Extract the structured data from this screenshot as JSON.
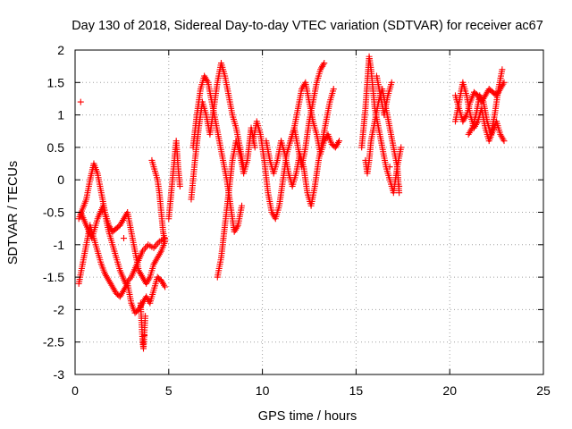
{
  "chart_data": {
    "type": "scatter",
    "title": "Day 130 of 2018, Sidereal Day-to-day VTEC variation (SDTVAR) for receiver ac67",
    "xlabel": "GPS time / hours",
    "ylabel": "SDTVAR / TECUs",
    "xlim": [
      0,
      25
    ],
    "ylim": [
      -3,
      2
    ],
    "xticks": [
      "0",
      "5",
      "10",
      "15",
      "20",
      "25"
    ],
    "yticks": [
      "2",
      "1.5",
      "1",
      "0.5",
      "0",
      "-0.5",
      "-1",
      "-1.5",
      "-2",
      "-2.5",
      "-3"
    ],
    "grid": true,
    "marker": "plus",
    "series": [
      {
        "name": "SDTVAR",
        "color": "#ff0000",
        "tracks": [
          [
            [
              0.2,
              -0.6
            ],
            [
              0.4,
              -0.45
            ],
            [
              0.6,
              -0.3
            ],
            [
              0.8,
              0.0
            ],
            [
              1.0,
              0.25
            ],
            [
              1.2,
              0.1
            ],
            [
              1.4,
              -0.2
            ],
            [
              1.6,
              -0.5
            ],
            [
              1.8,
              -0.7
            ],
            [
              2.0,
              -0.8
            ],
            [
              2.2,
              -0.75
            ],
            [
              2.4,
              -0.7
            ],
            [
              2.6,
              -0.6
            ],
            [
              2.8,
              -0.5
            ],
            [
              3.0,
              -0.8
            ],
            [
              3.2,
              -1.1
            ],
            [
              3.4,
              -1.4
            ],
            [
              3.6,
              -1.5
            ],
            [
              3.8,
              -1.6
            ],
            [
              4.0,
              -1.5
            ],
            [
              4.2,
              -1.3
            ],
            [
              4.4,
              -1.2
            ],
            [
              4.6,
              -1.1
            ],
            [
              4.8,
              -0.95
            ]
          ],
          [
            [
              0.2,
              -1.6
            ],
            [
              0.4,
              -1.3
            ],
            [
              0.6,
              -1.0
            ],
            [
              0.8,
              -0.7
            ],
            [
              1.0,
              -0.9
            ],
            [
              1.2,
              -1.1
            ],
            [
              1.4,
              -1.3
            ],
            [
              1.6,
              -1.45
            ],
            [
              1.8,
              -1.55
            ],
            [
              2.0,
              -1.65
            ],
            [
              2.2,
              -1.75
            ],
            [
              2.4,
              -1.8
            ],
            [
              2.6,
              -1.7
            ],
            [
              2.8,
              -1.6
            ],
            [
              3.0,
              -1.9
            ],
            [
              3.2,
              -2.05
            ],
            [
              3.4,
              -2.0
            ],
            [
              3.6,
              -1.9
            ],
            [
              3.8,
              -1.8
            ],
            [
              4.0,
              -1.9
            ],
            [
              4.2,
              -1.7
            ],
            [
              4.4,
              -1.5
            ],
            [
              4.6,
              -1.55
            ],
            [
              4.8,
              -1.65
            ]
          ],
          [
            [
              0.3,
              -0.5
            ],
            [
              0.6,
              -0.7
            ],
            [
              0.9,
              -0.9
            ],
            [
              1.2,
              -0.6
            ],
            [
              1.5,
              -0.4
            ],
            [
              1.8,
              -0.8
            ],
            [
              2.1,
              -1.1
            ],
            [
              2.4,
              -1.4
            ],
            [
              2.7,
              -1.6
            ],
            [
              3.0,
              -1.5
            ],
            [
              3.3,
              -1.3
            ],
            [
              3.6,
              -1.1
            ],
            [
              3.9,
              -1.0
            ],
            [
              4.2,
              -1.05
            ],
            [
              4.5,
              -0.95
            ],
            [
              4.8,
              -0.9
            ]
          ],
          [
            [
              3.5,
              -1.9
            ],
            [
              3.55,
              -2.2
            ],
            [
              3.6,
              -2.45
            ],
            [
              3.65,
              -2.6
            ],
            [
              3.7,
              -2.35
            ],
            [
              3.75,
              -2.1
            ]
          ],
          [
            [
              4.1,
              0.3
            ],
            [
              4.2,
              0.2
            ],
            [
              4.3,
              0.1
            ],
            [
              4.4,
              0.0
            ],
            [
              4.5,
              -0.2
            ],
            [
              4.6,
              -0.5
            ],
            [
              4.7,
              -0.8
            ],
            [
              4.8,
              -0.95
            ]
          ],
          [
            [
              5.0,
              -0.6
            ],
            [
              5.1,
              -0.3
            ],
            [
              5.2,
              0.0
            ],
            [
              5.3,
              0.3
            ],
            [
              5.4,
              0.6
            ],
            [
              5.5,
              0.2
            ],
            [
              5.6,
              -0.1
            ]
          ],
          [
            [
              6.2,
              -0.3
            ],
            [
              6.4,
              0.3
            ],
            [
              6.6,
              0.8
            ],
            [
              6.8,
              1.2
            ],
            [
              7.0,
              1.0
            ],
            [
              7.2,
              0.7
            ],
            [
              7.4,
              1.1
            ],
            [
              7.6,
              1.5
            ],
            [
              7.8,
              1.8
            ],
            [
              8.0,
              1.6
            ],
            [
              8.2,
              1.3
            ],
            [
              8.4,
              1.0
            ],
            [
              8.6,
              0.8
            ],
            [
              8.8,
              0.5
            ],
            [
              9.0,
              0.2
            ]
          ],
          [
            [
              6.3,
              0.5
            ],
            [
              6.5,
              1.0
            ],
            [
              6.7,
              1.4
            ],
            [
              6.9,
              1.6
            ],
            [
              7.1,
              1.5
            ],
            [
              7.3,
              1.2
            ],
            [
              7.5,
              0.9
            ],
            [
              7.7,
              0.6
            ],
            [
              7.9,
              0.3
            ],
            [
              8.1,
              0.0
            ],
            [
              8.3,
              -0.4
            ],
            [
              8.5,
              -0.8
            ],
            [
              8.7,
              -0.7
            ],
            [
              8.9,
              -0.4
            ]
          ],
          [
            [
              7.6,
              -1.5
            ],
            [
              7.8,
              -1.2
            ],
            [
              8.0,
              -0.7
            ],
            [
              8.2,
              -0.2
            ],
            [
              8.4,
              0.3
            ],
            [
              8.6,
              0.6
            ],
            [
              8.8,
              0.4
            ],
            [
              9.0,
              0.1
            ],
            [
              9.2,
              0.3
            ],
            [
              9.4,
              0.8
            ],
            [
              9.6,
              0.5
            ]
          ],
          [
            [
              9.5,
              0.6
            ],
            [
              9.7,
              0.9
            ],
            [
              9.9,
              0.7
            ],
            [
              10.1,
              0.3
            ],
            [
              10.3,
              -0.2
            ],
            [
              10.5,
              -0.5
            ],
            [
              10.7,
              -0.6
            ],
            [
              10.9,
              -0.4
            ],
            [
              11.1,
              0.0
            ],
            [
              11.3,
              0.4
            ],
            [
              11.5,
              0.6
            ],
            [
              11.7,
              0.8
            ],
            [
              11.9,
              1.1
            ],
            [
              12.1,
              1.4
            ],
            [
              12.3,
              1.5
            ],
            [
              12.5,
              1.2
            ],
            [
              12.7,
              0.9
            ],
            [
              12.9,
              0.7
            ],
            [
              13.1,
              0.4
            ],
            [
              13.3,
              0.6
            ],
            [
              13.5,
              0.7
            ],
            [
              13.7,
              0.55
            ],
            [
              13.9,
              0.5
            ],
            [
              14.1,
              0.6
            ]
          ],
          [
            [
              10.2,
              0.6
            ],
            [
              10.4,
              0.3
            ],
            [
              10.6,
              0.1
            ],
            [
              10.8,
              0.3
            ],
            [
              11.0,
              0.6
            ],
            [
              11.2,
              0.4
            ],
            [
              11.4,
              0.1
            ],
            [
              11.6,
              -0.1
            ],
            [
              11.8,
              0.1
            ],
            [
              12.0,
              0.4
            ],
            [
              12.2,
              0.2
            ],
            [
              12.4,
              -0.2
            ],
            [
              12.6,
              -0.4
            ],
            [
              12.8,
              -0.1
            ],
            [
              13.0,
              0.3
            ],
            [
              13.2,
              0.6
            ],
            [
              13.4,
              0.9
            ],
            [
              13.6,
              1.2
            ],
            [
              13.8,
              1.4
            ]
          ],
          [
            [
              11.5,
              0.6
            ],
            [
              11.7,
              0.8
            ],
            [
              11.9,
              0.5
            ],
            [
              12.1,
              0.2
            ],
            [
              12.3,
              0.5
            ],
            [
              12.5,
              0.9
            ],
            [
              12.7,
              1.2
            ],
            [
              12.9,
              1.5
            ],
            [
              13.1,
              1.7
            ],
            [
              13.3,
              1.8
            ]
          ],
          [
            [
              15.3,
              0.5
            ],
            [
              15.4,
              0.8
            ],
            [
              15.5,
              1.1
            ],
            [
              15.6,
              1.5
            ],
            [
              15.7,
              1.9
            ],
            [
              15.8,
              1.7
            ],
            [
              15.9,
              1.4
            ],
            [
              16.0,
              1.1
            ],
            [
              16.2,
              0.8
            ],
            [
              16.4,
              0.5
            ],
            [
              16.6,
              0.2
            ],
            [
              16.8,
              0.0
            ],
            [
              17.0,
              -0.2
            ],
            [
              17.2,
              0.2
            ],
            [
              17.4,
              0.5
            ]
          ],
          [
            [
              15.5,
              0.3
            ],
            [
              15.6,
              0.1
            ],
            [
              15.7,
              0.3
            ],
            [
              15.8,
              0.6
            ],
            [
              16.0,
              0.9
            ],
            [
              16.2,
              1.2
            ],
            [
              16.4,
              1.4
            ],
            [
              16.6,
              1.1
            ],
            [
              16.8,
              0.8
            ],
            [
              17.0,
              0.5
            ],
            [
              17.2,
              0.2
            ],
            [
              17.3,
              -0.2
            ]
          ],
          [
            [
              16.1,
              1.6
            ],
            [
              16.3,
              1.3
            ],
            [
              16.5,
              1.0
            ],
            [
              16.7,
              1.3
            ],
            [
              16.9,
              1.5
            ]
          ],
          [
            [
              20.3,
              1.3
            ],
            [
              20.5,
              1.1
            ],
            [
              20.7,
              0.9
            ],
            [
              20.9,
              1.0
            ],
            [
              21.1,
              1.2
            ],
            [
              21.3,
              1.35
            ],
            [
              21.5,
              1.3
            ],
            [
              21.7,
              1.2
            ],
            [
              21.9,
              1.3
            ],
            [
              22.1,
              1.4
            ],
            [
              22.3,
              1.35
            ],
            [
              22.5,
              1.3
            ],
            [
              22.7,
              1.4
            ],
            [
              22.9,
              1.5
            ]
          ],
          [
            [
              20.3,
              0.9
            ],
            [
              20.5,
              1.2
            ],
            [
              20.7,
              1.5
            ],
            [
              20.9,
              1.3
            ],
            [
              21.1,
              1.0
            ],
            [
              21.3,
              0.8
            ],
            [
              21.5,
              0.9
            ],
            [
              21.7,
              1.1
            ],
            [
              21.9,
              0.8
            ],
            [
              22.1,
              0.6
            ],
            [
              22.3,
              0.75
            ],
            [
              22.5,
              0.9
            ],
            [
              22.7,
              0.7
            ],
            [
              22.9,
              0.6
            ]
          ],
          [
            [
              21.0,
              0.7
            ],
            [
              21.2,
              0.8
            ],
            [
              21.4,
              1.0
            ],
            [
              21.6,
              1.3
            ],
            [
              21.8,
              1.2
            ],
            [
              22.0,
              0.9
            ],
            [
              22.2,
              0.7
            ],
            [
              22.4,
              1.0
            ],
            [
              22.6,
              1.4
            ],
            [
              22.8,
              1.7
            ]
          ]
        ],
        "isolated": [
          [
            0.3,
            1.2
          ],
          [
            2.6,
            -0.9
          ],
          [
            3.7,
            -2.4
          ],
          [
            13.2,
            1.75
          ],
          [
            16.8,
            0.2
          ],
          [
            17.3,
            -0.1
          ]
        ]
      }
    ]
  }
}
